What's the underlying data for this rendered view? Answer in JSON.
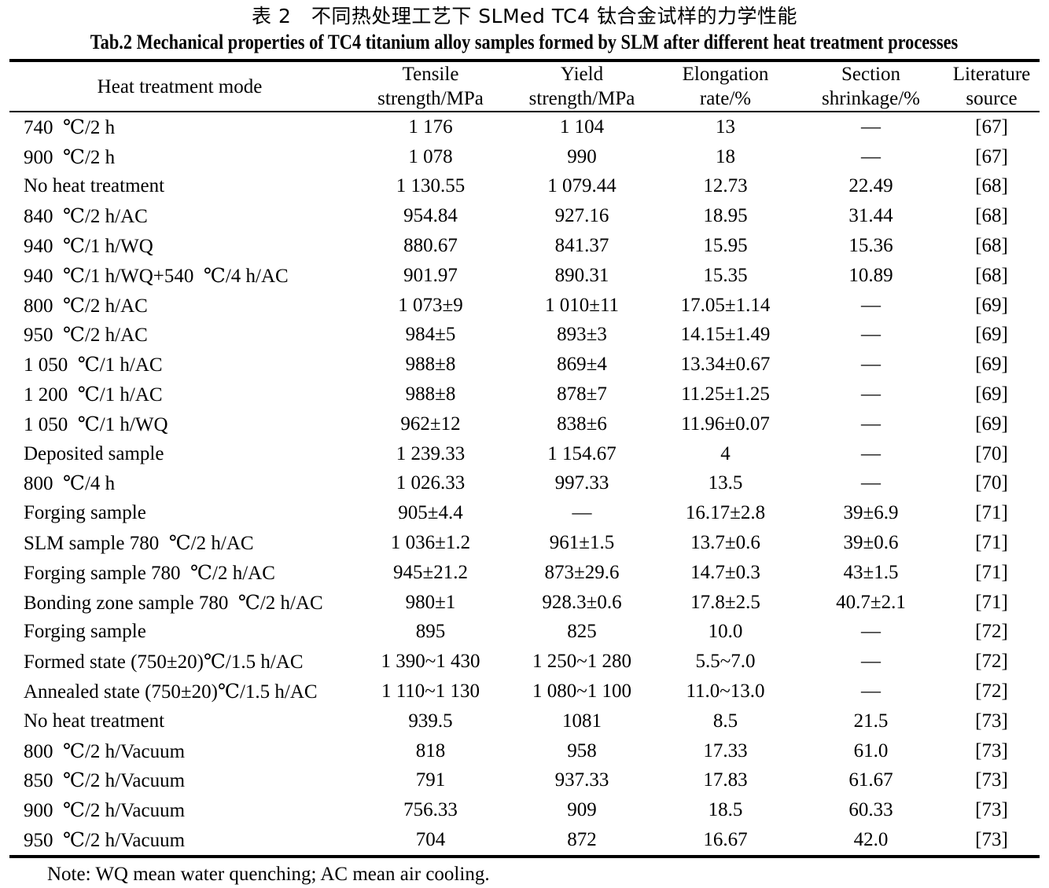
{
  "captions": {
    "chinese": "表 2　不同热处理工艺下 SLMed TC4 钛合金试样的力学性能",
    "english": "Tab.2 Mechanical properties of TC4 titanium alloy samples formed by SLM after different heat treatment processes"
  },
  "table": {
    "headers": [
      {
        "line1": "Heat treatment mode",
        "line2": ""
      },
      {
        "line1": "Tensile",
        "line2": "strength/MPa"
      },
      {
        "line1": "Yield",
        "line2": "strength/MPa"
      },
      {
        "line1": "Elongation",
        "line2": "rate/%"
      },
      {
        "line1": "Section",
        "line2": "shrinkage/%"
      },
      {
        "line1": "Literature",
        "line2": "source"
      }
    ],
    "cell_names": [
      "heat-treatment-mode-cell",
      "tensile-strength-cell",
      "yield-strength-cell",
      "elongation-rate-cell",
      "section-shrinkage-cell",
      "literature-source-cell"
    ],
    "rows": [
      [
        "740 ℃/2 h",
        "1 176",
        "1 104",
        "13",
        "—",
        "[67]"
      ],
      [
        "900 ℃/2 h",
        "1 078",
        "990",
        "18",
        "—",
        "[67]"
      ],
      [
        "No heat treatment",
        "1 130.55",
        "1 079.44",
        "12.73",
        "22.49",
        "[68]"
      ],
      [
        "840 ℃/2 h/AC",
        "954.84",
        "927.16",
        "18.95",
        "31.44",
        "[68]"
      ],
      [
        "940 ℃/1 h/WQ",
        "880.67",
        "841.37",
        "15.95",
        "15.36",
        "[68]"
      ],
      [
        "940 ℃/1 h/WQ+540 ℃/4 h/AC",
        "901.97",
        "890.31",
        "15.35",
        "10.89",
        "[68]"
      ],
      [
        "800 ℃/2 h/AC",
        "1 073±9",
        "1 010±11",
        "17.05±1.14",
        "—",
        "[69]"
      ],
      [
        "950 ℃/2 h/AC",
        "984±5",
        "893±3",
        "14.15±1.49",
        "—",
        "[69]"
      ],
      [
        "1 050 ℃/1 h/AC",
        "988±8",
        "869±4",
        "13.34±0.67",
        "—",
        "[69]"
      ],
      [
        "1 200 ℃/1 h/AC",
        "988±8",
        "878±7",
        "11.25±1.25",
        "—",
        "[69]"
      ],
      [
        "1 050 ℃/1 h/WQ",
        "962±12",
        "838±6",
        "11.96±0.07",
        "—",
        "[69]"
      ],
      [
        "Deposited sample",
        "1 239.33",
        "1 154.67",
        "4",
        "—",
        "[70]"
      ],
      [
        "800 ℃/4 h",
        "1 026.33",
        "997.33",
        "13.5",
        "—",
        "[70]"
      ],
      [
        "Forging sample",
        "905±4.4",
        "—",
        "16.17±2.8",
        "39±6.9",
        "[71]"
      ],
      [
        "SLM sample 780 ℃/2 h/AC",
        "1 036±1.2",
        "961±1.5",
        "13.7±0.6",
        "39±0.6",
        "[71]"
      ],
      [
        "Forging sample 780 ℃/2 h/AC",
        "945±21.2",
        "873±29.6",
        "14.7±0.3",
        "43±1.5",
        "[71]"
      ],
      [
        "Bonding zone sample 780 ℃/2 h/AC",
        "980±1",
        "928.3±0.6",
        "17.8±2.5",
        "40.7±2.1",
        "[71]"
      ],
      [
        "Forging sample",
        "895",
        "825",
        "10.0",
        "—",
        "[72]"
      ],
      [
        "Formed state (750±20)℃/1.5 h/AC",
        "1 390~1 430",
        "1 250~1 280",
        "5.5~7.0",
        "—",
        "[72]"
      ],
      [
        "Annealed state (750±20)℃/1.5 h/AC",
        "1 110~1 130",
        "1 080~1 100",
        "11.0~13.0",
        "—",
        "[72]"
      ],
      [
        "No heat treatment",
        "939.5",
        "1081",
        "8.5",
        "21.5",
        "[73]"
      ],
      [
        "800 ℃/2 h/Vacuum",
        "818",
        "958",
        "17.33",
        "61.0",
        "[73]"
      ],
      [
        "850 ℃/2 h/Vacuum",
        "791",
        "937.33",
        "17.83",
        "61.67",
        "[73]"
      ],
      [
        "900 ℃/2 h/Vacuum",
        "756.33",
        "909",
        "18.5",
        "60.33",
        "[73]"
      ],
      [
        "950 ℃/2 h/Vacuum",
        "704",
        "872",
        "16.67",
        "42.0",
        "[73]"
      ]
    ]
  },
  "note": "Note: WQ mean water quenching; AC mean air cooling.",
  "colors": {
    "background": "#ffffff",
    "text": "#000000",
    "rule": "#000000"
  }
}
